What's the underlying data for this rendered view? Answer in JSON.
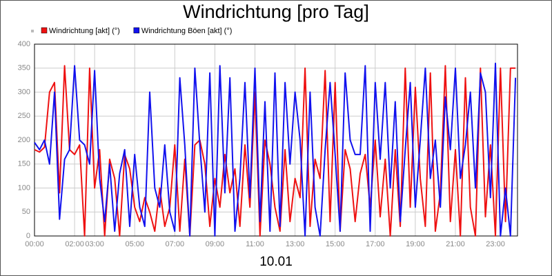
{
  "chart_data": {
    "type": "line",
    "title": "Windrichtung [pro Tag]",
    "xlabel": "10.01",
    "xlim": [
      0,
      24.1
    ],
    "ylim": [
      0,
      400
    ],
    "yticks": [
      0,
      50,
      100,
      150,
      200,
      250,
      300,
      350,
      400
    ],
    "xticks": [
      {
        "value": 0,
        "label": "00:00"
      },
      {
        "value": 2,
        "label": "02:00"
      },
      {
        "value": 3,
        "label": "03:00"
      },
      {
        "value": 5,
        "label": "05:00"
      },
      {
        "value": 7,
        "label": "07:00"
      },
      {
        "value": 9,
        "label": "09:00"
      },
      {
        "value": 11,
        "label": "11:00"
      },
      {
        "value": 13,
        "label": "13:00"
      },
      {
        "value": 15,
        "label": "15:00"
      },
      {
        "value": 17,
        "label": "17:00"
      },
      {
        "value": 19,
        "label": "19:00"
      },
      {
        "value": 21,
        "label": "21:00"
      },
      {
        "value": 23,
        "label": "23:00"
      }
    ],
    "grid": true,
    "x": [
      0,
      0.25,
      0.5,
      0.75,
      1,
      1.25,
      1.5,
      1.75,
      2,
      2.25,
      2.5,
      2.75,
      3,
      3.25,
      3.5,
      3.75,
      4,
      4.25,
      4.5,
      4.75,
      5,
      5.25,
      5.5,
      5.75,
      6,
      6.25,
      6.5,
      6.75,
      7,
      7.25,
      7.5,
      7.75,
      8,
      8.25,
      8.5,
      8.75,
      9,
      9.25,
      9.5,
      9.75,
      10,
      10.25,
      10.5,
      10.75,
      11,
      11.25,
      11.5,
      11.75,
      12,
      12.25,
      12.5,
      12.75,
      13,
      13.25,
      13.5,
      13.75,
      14,
      14.25,
      14.5,
      14.75,
      15,
      15.25,
      15.5,
      15.75,
      16,
      16.25,
      16.5,
      16.75,
      17,
      17.25,
      17.5,
      17.75,
      18,
      18.25,
      18.5,
      18.75,
      19,
      19.25,
      19.5,
      19.75,
      20,
      20.25,
      20.5,
      20.75,
      21,
      21.25,
      21.5,
      21.75,
      22,
      22.25,
      22.5,
      22.75,
      23,
      23.25,
      23.5,
      23.75,
      24
    ],
    "series": [
      {
        "name": "Windrichtung [akt] (°)",
        "color": "#ee1111",
        "values": [
          180,
          175,
          185,
          300,
          320,
          90,
          355,
          180,
          170,
          190,
          0,
          350,
          100,
          180,
          0,
          160,
          120,
          0,
          170,
          140,
          60,
          30,
          80,
          50,
          10,
          100,
          20,
          60,
          190,
          10,
          160,
          0,
          190,
          200,
          150,
          20,
          120,
          60,
          170,
          90,
          140,
          20,
          190,
          60,
          300,
          0,
          200,
          150,
          60,
          10,
          180,
          30,
          120,
          80,
          350,
          20,
          160,
          120,
          345,
          30,
          320,
          10,
          180,
          140,
          30,
          130,
          170,
          60,
          200,
          40,
          160,
          0,
          180,
          20,
          350,
          60,
          310,
          120,
          20,
          340,
          10,
          90,
          355,
          30,
          180,
          0,
          330,
          60,
          0,
          350,
          40,
          190,
          0,
          350,
          30,
          350,
          350
        ]
      },
      {
        "name": "Windrichtung Böen [akt] (°)",
        "color": "#1111ee",
        "values": [
          195,
          180,
          200,
          150,
          300,
          35,
          160,
          180,
          355,
          200,
          190,
          150,
          345,
          120,
          30,
          150,
          10,
          130,
          180,
          20,
          170,
          60,
          20,
          300,
          100,
          60,
          190,
          50,
          10,
          330,
          190,
          0,
          350,
          190,
          50,
          340,
          0,
          355,
          90,
          330,
          10,
          120,
          320,
          80,
          350,
          30,
          280,
          10,
          340,
          20,
          320,
          150,
          300,
          200,
          0,
          300,
          60,
          0,
          180,
          320,
          170,
          10,
          340,
          200,
          170,
          170,
          355,
          10,
          320,
          160,
          320,
          100,
          280,
          30,
          180,
          320,
          60,
          200,
          350,
          120,
          200,
          60,
          290,
          180,
          350,
          120,
          190,
          300,
          100,
          340,
          300,
          80,
          360,
          0,
          100,
          0,
          330
        ]
      }
    ]
  }
}
